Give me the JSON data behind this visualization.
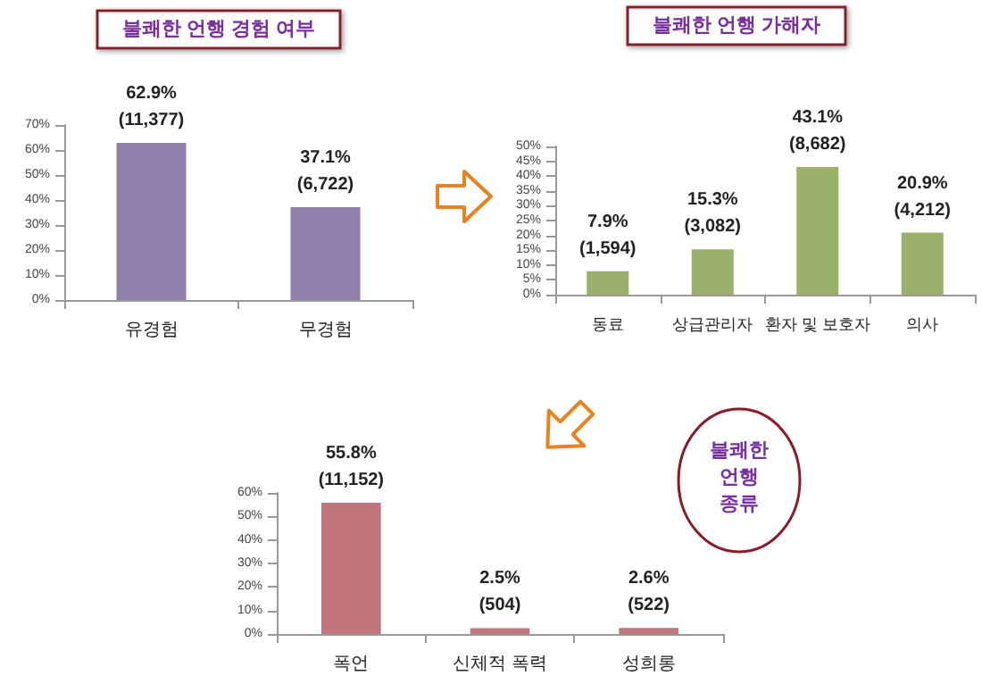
{
  "chart_data": [
    {
      "type": "bar",
      "title": "불쾌한 언행 경험 여부",
      "categories": [
        "유경험",
        "무경험"
      ],
      "values": [
        62.9,
        37.1
      ],
      "color": "#8e7fab",
      "value_labels": [
        "62.9%\n(11,377)",
        "37.1%\n(6,722)"
      ],
      "ylim": [
        0,
        70
      ],
      "yticks": [
        {
          "value": 0,
          "label": "0%"
        },
        {
          "value": 10,
          "label": "10%"
        },
        {
          "value": 20,
          "label": "20%"
        },
        {
          "value": 30,
          "label": "30%"
        },
        {
          "value": 40,
          "label": "40%"
        },
        {
          "value": 50,
          "label": "50%"
        },
        {
          "value": 60,
          "label": "60%"
        },
        {
          "value": 70,
          "label": "70%"
        }
      ],
      "grid": false
    },
    {
      "type": "bar",
      "title": "불쾌한 언행 가해자",
      "categories": [
        "동료",
        "상급관리자",
        "환자 및 보호자",
        "의사"
      ],
      "values": [
        7.9,
        15.3,
        43.1,
        20.9
      ],
      "color": "#9bb06a",
      "value_labels": [
        "7.9%\n(1,594)",
        "15.3%\n(3,082)",
        "43.1%\n(8,682)",
        "20.9%\n(4,212)"
      ],
      "ylim": [
        0,
        50
      ],
      "yticks": [
        {
          "value": 0,
          "label": "0%"
        },
        {
          "value": 5,
          "label": "5%"
        },
        {
          "value": 10,
          "label": "10%"
        },
        {
          "value": 15,
          "label": "15%"
        },
        {
          "value": 20,
          "label": "20%"
        },
        {
          "value": 25,
          "label": "25%"
        },
        {
          "value": 30,
          "label": "30%"
        },
        {
          "value": 35,
          "label": "35%"
        },
        {
          "value": 40,
          "label": "40%"
        },
        {
          "value": 45,
          "label": "45%"
        },
        {
          "value": 50,
          "label": "50%"
        }
      ],
      "grid": false
    },
    {
      "type": "bar",
      "title": "불쾌한\n언행\n종류",
      "categories": [
        "폭언",
        "신체적 폭력",
        "성희롱"
      ],
      "values": [
        55.8,
        2.5,
        2.6
      ],
      "color": "#c0767a",
      "value_labels": [
        "55.8%\n(11,152)",
        "2.5%\n(504)",
        "2.6%\n(522)"
      ],
      "ylim": [
        0,
        60
      ],
      "yticks": [
        {
          "value": 0,
          "label": "0%"
        },
        {
          "value": 10,
          "label": "10%"
        },
        {
          "value": 20,
          "label": "20%"
        },
        {
          "value": 30,
          "label": "30%"
        },
        {
          "value": 40,
          "label": "40%"
        },
        {
          "value": 50,
          "label": "50%"
        },
        {
          "value": 60,
          "label": "60%"
        }
      ],
      "grid": false
    }
  ]
}
